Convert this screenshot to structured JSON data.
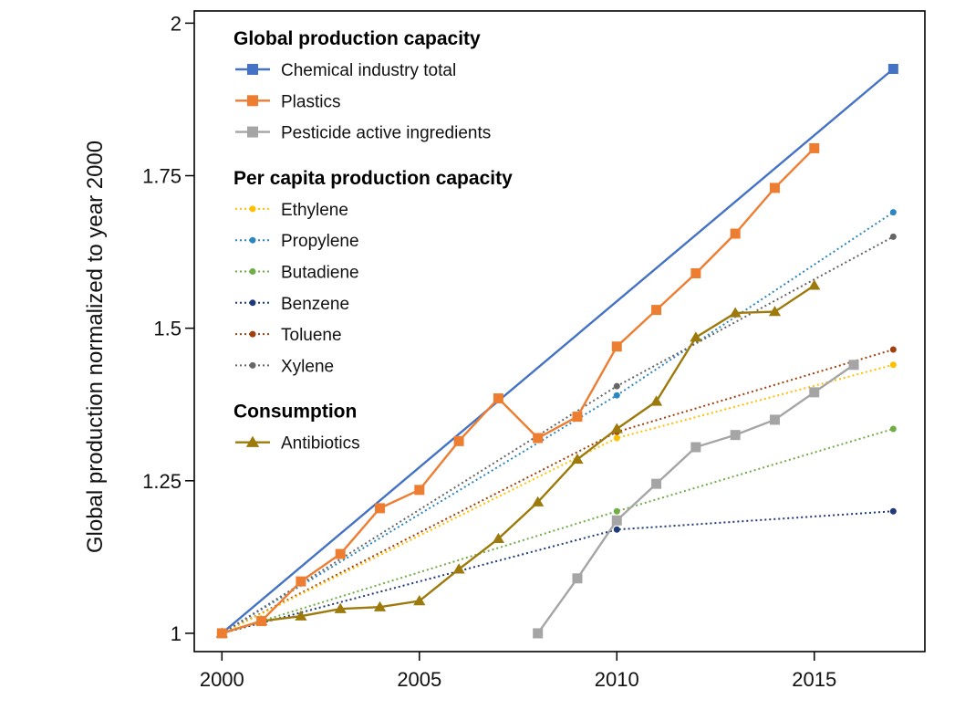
{
  "chart_data": {
    "type": "line",
    "xlabel": "",
    "ylabel": "Global production normalized to year 2000",
    "xlim": [
      1999.3,
      2017.8
    ],
    "ylim": [
      0.97,
      2.02
    ],
    "xticks": [
      2000,
      2005,
      2010,
      2015
    ],
    "xtick_labels": [
      "2000",
      "2005",
      "2010",
      "2015"
    ],
    "yticks": [
      1,
      1.25,
      1.5,
      1.75,
      2
    ],
    "ytick_labels": [
      "1",
      "1.25",
      "1.5",
      "1.75",
      "2"
    ],
    "grid": false,
    "legend_placement": "top-left",
    "legend_groups": [
      {
        "title": "Global production capacity",
        "items": [
          "Chemical industry total",
          "Plastics",
          "Pesticide active ingredients"
        ]
      },
      {
        "title": "Per capita production capacity",
        "items": [
          "Ethylene",
          "Propylene",
          "Butadiene",
          "Benzene",
          "Toluene",
          "Xylene"
        ]
      },
      {
        "title": "Consumption",
        "items": [
          "Antibiotics"
        ]
      }
    ],
    "series": [
      {
        "name": "Chemical industry total",
        "color": "#4472C4",
        "style": "solid",
        "marker": "square",
        "marker_points": "last",
        "x": [
          2000,
          2017
        ],
        "y": [
          1.0,
          1.925
        ]
      },
      {
        "name": "Plastics",
        "color": "#ED7D31",
        "style": "solid",
        "marker": "square",
        "marker_points": "all",
        "x": [
          2000,
          2001,
          2002,
          2003,
          2004,
          2005,
          2006,
          2007,
          2008,
          2009,
          2010,
          2011,
          2012,
          2013,
          2014,
          2015
        ],
        "y": [
          1.0,
          1.02,
          1.085,
          1.13,
          1.205,
          1.235,
          1.315,
          1.385,
          1.32,
          1.355,
          1.47,
          1.53,
          1.59,
          1.655,
          1.73,
          1.795
        ]
      },
      {
        "name": "Pesticide active ingredients",
        "color": "#A5A5A5",
        "style": "solid",
        "marker": "square",
        "marker_points": "all",
        "x": [
          2008,
          2009,
          2010,
          2011,
          2012,
          2013,
          2014,
          2015,
          2016
        ],
        "y": [
          1.0,
          1.09,
          1.185,
          1.245,
          1.305,
          1.325,
          1.35,
          1.395,
          1.44
        ]
      },
      {
        "name": "Ethylene",
        "color": "#FFC000",
        "style": "dotted",
        "marker": "circle",
        "marker_points": "all",
        "x": [
          2000,
          2010,
          2017
        ],
        "y": [
          1.0,
          1.32,
          1.44
        ]
      },
      {
        "name": "Propylene",
        "color": "#2E86C1",
        "style": "dotted",
        "marker": "circle",
        "marker_points": "all",
        "x": [
          2000,
          2010,
          2017
        ],
        "y": [
          1.0,
          1.39,
          1.69
        ]
      },
      {
        "name": "Butadiene",
        "color": "#70AD47",
        "style": "dotted",
        "marker": "circle",
        "marker_points": "all",
        "x": [
          2000,
          2010,
          2017
        ],
        "y": [
          1.0,
          1.2,
          1.335
        ]
      },
      {
        "name": "Benzene",
        "color": "#1F3A7A",
        "style": "dotted",
        "marker": "circle",
        "marker_points": "all",
        "x": [
          2000,
          2010,
          2017
        ],
        "y": [
          1.0,
          1.17,
          1.2
        ]
      },
      {
        "name": "Toluene",
        "color": "#A0400E",
        "style": "dotted",
        "marker": "circle",
        "marker_points": "all",
        "x": [
          2000,
          2010,
          2017
        ],
        "y": [
          1.0,
          1.33,
          1.465
        ]
      },
      {
        "name": "Xylene",
        "color": "#666666",
        "style": "dotted",
        "marker": "circle",
        "marker_points": "all",
        "x": [
          2000,
          2010,
          2017
        ],
        "y": [
          1.0,
          1.405,
          1.65
        ]
      },
      {
        "name": "Antibiotics",
        "color": "#9C7A0C",
        "style": "solid",
        "marker": "triangle",
        "marker_points": "all",
        "x": [
          2000,
          2001,
          2002,
          2003,
          2004,
          2005,
          2006,
          2007,
          2008,
          2009,
          2010,
          2011,
          2012,
          2013,
          2014,
          2015
        ],
        "y": [
          1.0,
          1.02,
          1.028,
          1.04,
          1.043,
          1.053,
          1.105,
          1.155,
          1.215,
          1.285,
          1.335,
          1.38,
          1.485,
          1.525,
          1.527,
          1.57
        ]
      }
    ]
  }
}
